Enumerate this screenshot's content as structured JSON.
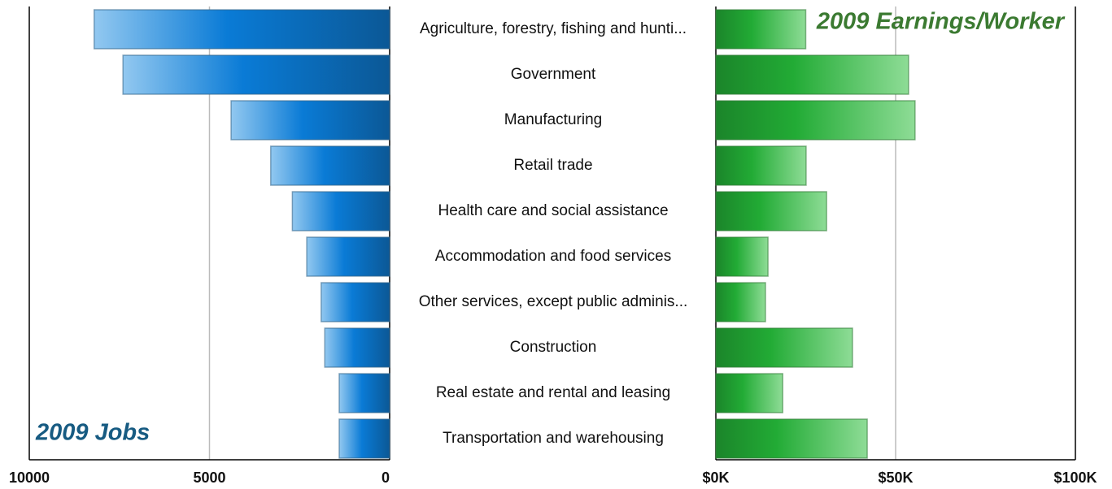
{
  "chart_data": [
    {
      "type": "barh",
      "title": "2009 Jobs",
      "categories": [
        "Agriculture, forestry, fishing and hunti...",
        "Government",
        "Manufacturing",
        "Retail trade",
        "Health care and social assistance",
        "Accommodation and food services",
        "Other services, except public adminis...",
        "Construction",
        "Real estate and rental and leasing",
        "Transportation and warehousing"
      ],
      "values": [
        8200,
        7400,
        4400,
        3300,
        2700,
        2300,
        1900,
        1800,
        1400,
        1400
      ],
      "color": "#0a7bd6",
      "xlim": [
        10000,
        0
      ],
      "xticks": [
        10000,
        5000,
        0
      ],
      "grid": true
    },
    {
      "type": "barh",
      "title": "2009 Earnings/Worker",
      "values": [
        25000,
        53600,
        55400,
        25100,
        30800,
        14500,
        13800,
        38000,
        18600,
        42100
      ],
      "color": "#22aa33",
      "xlim": [
        0,
        100000
      ],
      "xticks": [
        {
          "value": 0,
          "label": "$0K"
        },
        {
          "value": 50000,
          "label": "$50K"
        },
        {
          "value": 100000,
          "label": "$100K"
        }
      ],
      "grid": true
    }
  ]
}
